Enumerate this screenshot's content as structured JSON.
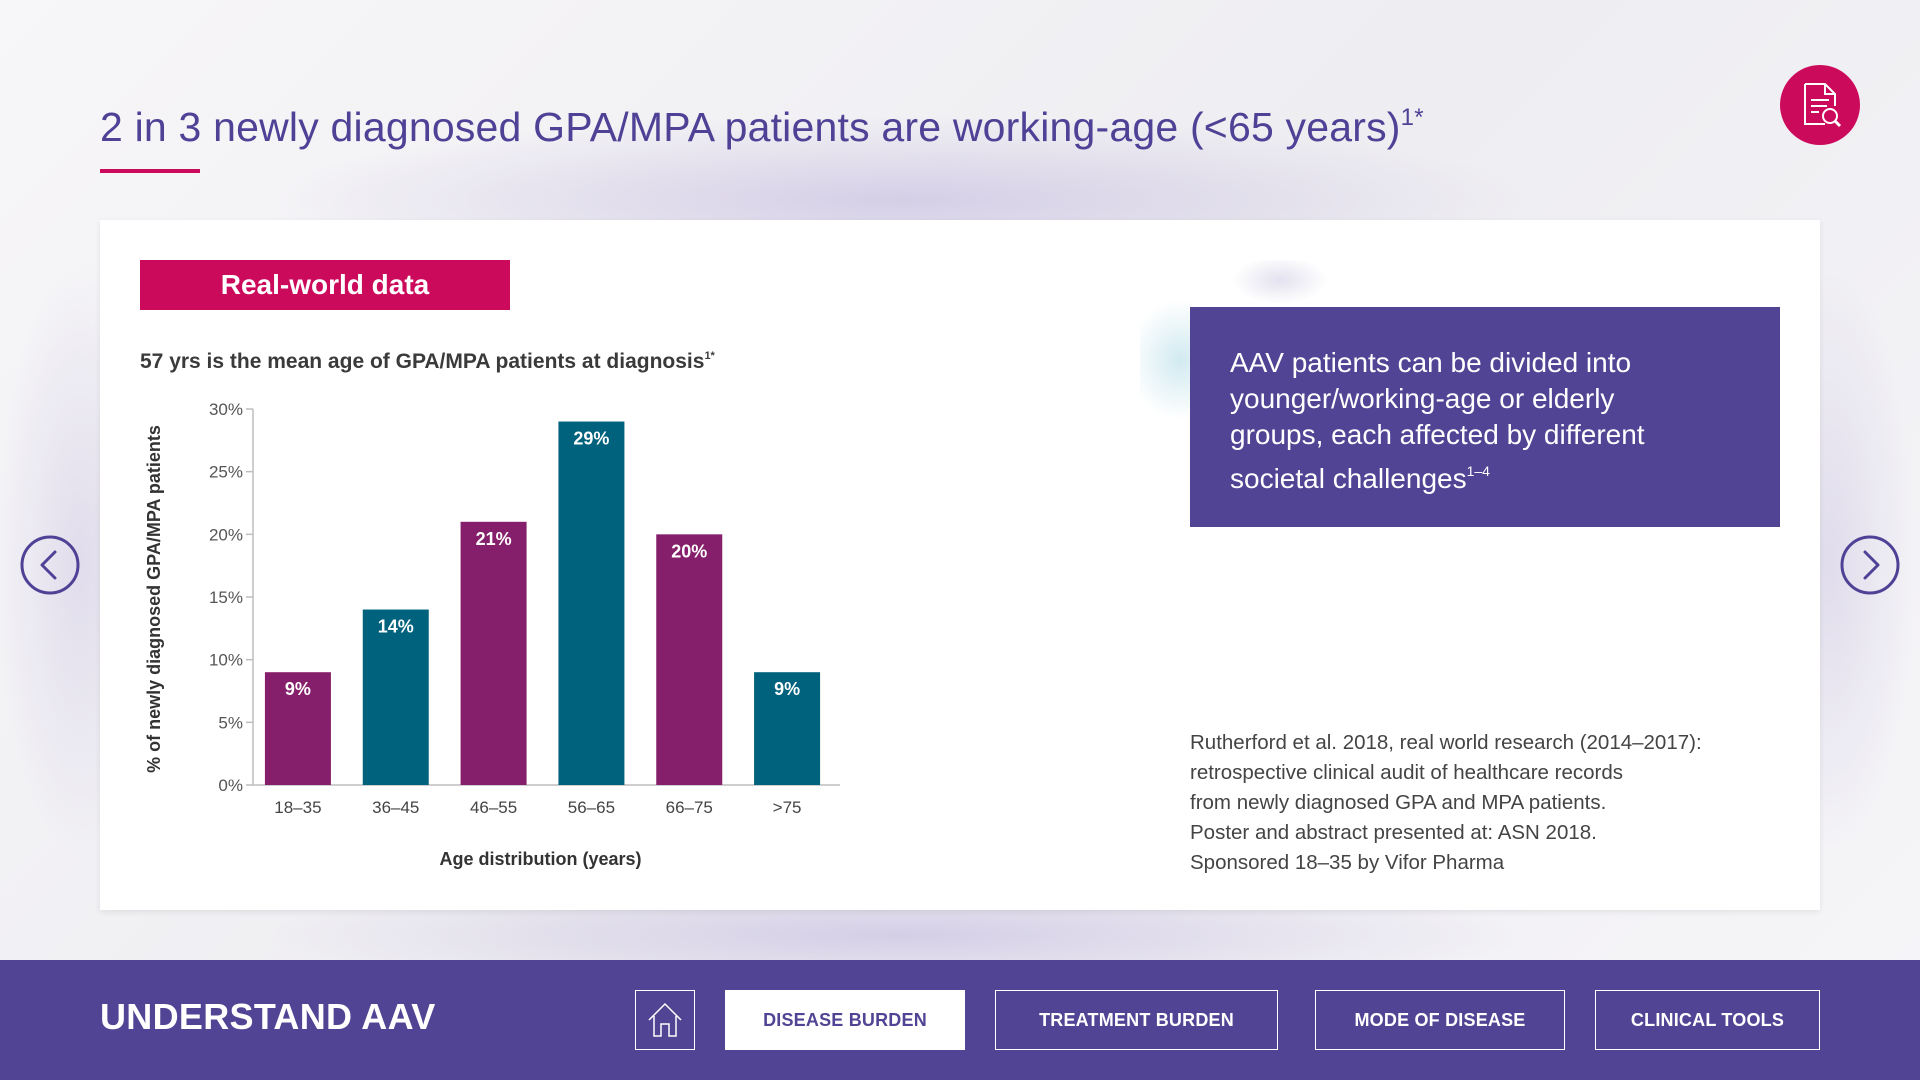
{
  "page": {
    "title": "2 in 3 newly diagnosed GPA/MPA patients are working-age (<65 years)",
    "title_sup": "1*",
    "report_icon": "document-search-icon"
  },
  "card": {
    "tag": "Real-world data",
    "subtitle": "57 yrs is the mean age of GPA/MPA patients at diagnosis",
    "subtitle_sup": "1*",
    "info_box": {
      "lines": [
        "AAV patients can be divided into",
        "younger/working-age or elderly",
        "groups, each affected by different",
        "societal challenges"
      ],
      "sup": "1–4"
    },
    "source_lines": [
      "Rutherford et al. 2018, real world research (2014–2017):",
      "retrospective clinical audit of healthcare records",
      "from newly diagnosed GPA and MPA patients.",
      "Poster and abstract presented at: ASN 2018.",
      "Sponsored 18–35 by Vifor Pharma"
    ]
  },
  "chart_data": {
    "type": "bar",
    "title": "57 yrs is the mean age of GPA/MPA patients at diagnosis",
    "xlabel": "Age distribution (years)",
    "ylabel": "% of newly diagnosed GPA/MPA patients",
    "categories": [
      "18–35",
      "36–45",
      "46–55",
      "56–65",
      "66–75",
      ">75"
    ],
    "values": [
      9,
      14,
      21,
      29,
      20,
      9
    ],
    "data_labels": [
      "9%",
      "14%",
      "21%",
      "29%",
      "20%",
      "9%"
    ],
    "bar_colors": [
      "#861f6b",
      "#00627c",
      "#861f6b",
      "#00627c",
      "#861f6b",
      "#00627c"
    ],
    "ylim": [
      0,
      30
    ],
    "yticks": [
      0,
      5,
      10,
      15,
      20,
      25,
      30
    ],
    "ytick_labels": [
      "0%",
      "5%",
      "10%",
      "15%",
      "20%",
      "25%",
      "30%"
    ],
    "grid": false,
    "legend": "none"
  },
  "navigation": {
    "prev_icon": "chevron-left-circle-icon",
    "next_icon": "chevron-right-circle-icon"
  },
  "footer": {
    "title": "UNDERSTAND AAV",
    "home_icon": "home-icon",
    "tabs": [
      {
        "label": "DISEASE BURDEN",
        "active": true
      },
      {
        "label": "TREATMENT BURDEN",
        "active": false
      },
      {
        "label": "MODE OF DISEASE",
        "active": false
      },
      {
        "label": "CLINICAL TOOLS",
        "active": false
      }
    ]
  },
  "colors": {
    "brand_purple": "#524494",
    "accent_magenta": "#cc0a5c",
    "bar_plum": "#861f6b",
    "bar_teal": "#00627c"
  }
}
